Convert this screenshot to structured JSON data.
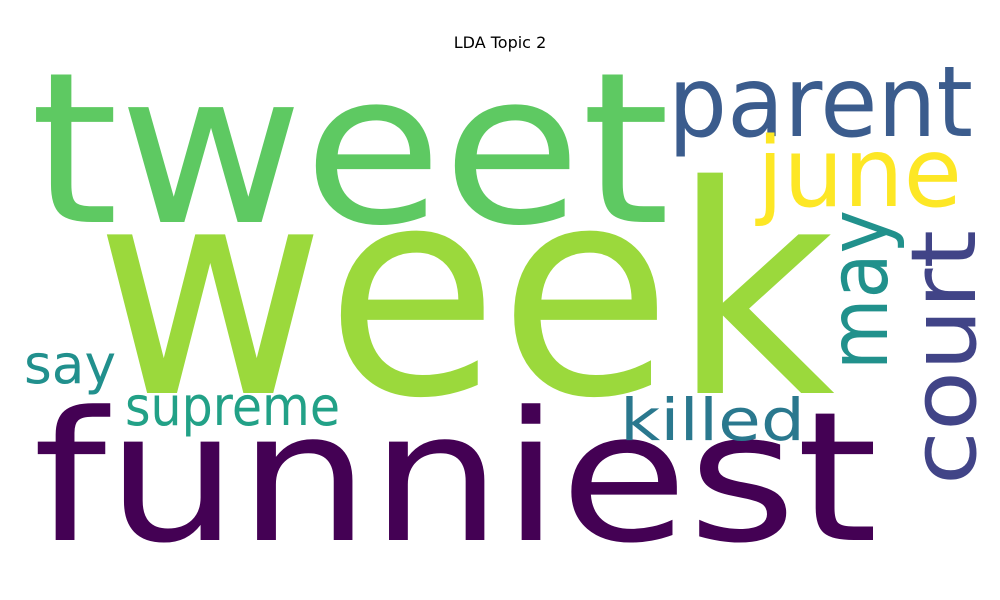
{
  "chart_data": {
    "type": "wordcloud",
    "title": "LDA Topic 2",
    "words": [
      {
        "text": "week",
        "color": "#9bd93c"
      },
      {
        "text": "funniest",
        "color": "#440154"
      },
      {
        "text": "tweet",
        "color": "#5ec962"
      },
      {
        "text": "parent",
        "color": "#3b5c8d"
      },
      {
        "text": "june",
        "color": "#fde725"
      },
      {
        "text": "court",
        "color": "#414487"
      },
      {
        "text": "may",
        "color": "#21918c"
      },
      {
        "text": "supreme",
        "color": "#22a187"
      },
      {
        "text": "killed",
        "color": "#2a788e"
      },
      {
        "text": "say",
        "color": "#21908d"
      }
    ]
  }
}
